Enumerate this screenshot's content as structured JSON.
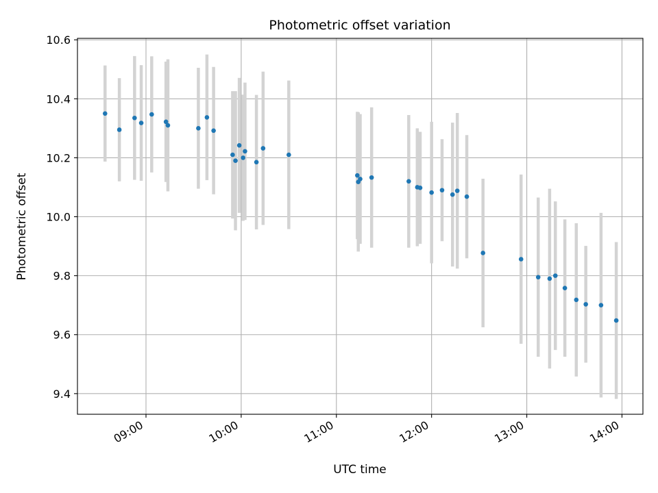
{
  "chart_data": {
    "type": "scatter",
    "title": "Photometric offset variation",
    "xlabel": "UTC time",
    "ylabel": "Photometric offset",
    "x_unit": "UTC hour",
    "xlim": [
      8.28,
      14.22
    ],
    "ylim": [
      9.33,
      10.605
    ],
    "xticks": [
      9,
      10,
      11,
      12,
      13,
      14
    ],
    "xtick_labels": [
      "09:00",
      "10:00",
      "11:00",
      "12:00",
      "13:00",
      "14:00"
    ],
    "yticks": [
      9.4,
      9.6,
      9.8,
      10.0,
      10.2,
      10.4,
      10.6
    ],
    "ytick_labels": [
      "9.4",
      "9.6",
      "9.8",
      "10.0",
      "10.2",
      "10.4",
      "10.6"
    ],
    "grid": true,
    "legend": "none",
    "point_color": "#1f77b4",
    "errorbar_color": "#d3d3d3",
    "points": [
      {
        "x": 8.57,
        "y": 10.35,
        "err": 0.163
      },
      {
        "x": 8.72,
        "y": 10.295,
        "err": 0.175
      },
      {
        "x": 8.88,
        "y": 10.335,
        "err": 0.21
      },
      {
        "x": 8.95,
        "y": 10.318,
        "err": 0.196
      },
      {
        "x": 9.06,
        "y": 10.347,
        "err": 0.197
      },
      {
        "x": 9.21,
        "y": 10.322,
        "err": 0.204
      },
      {
        "x": 9.23,
        "y": 10.31,
        "err": 0.224
      },
      {
        "x": 9.55,
        "y": 10.3,
        "err": 0.205
      },
      {
        "x": 9.64,
        "y": 10.337,
        "err": 0.213
      },
      {
        "x": 9.71,
        "y": 10.292,
        "err": 0.216
      },
      {
        "x": 9.91,
        "y": 10.21,
        "err": 0.216
      },
      {
        "x": 9.94,
        "y": 10.19,
        "err": 0.236
      },
      {
        "x": 9.98,
        "y": 10.242,
        "err": 0.229
      },
      {
        "x": 10.02,
        "y": 10.2,
        "err": 0.214
      },
      {
        "x": 10.04,
        "y": 10.222,
        "err": 0.233
      },
      {
        "x": 10.16,
        "y": 10.185,
        "err": 0.228
      },
      {
        "x": 10.23,
        "y": 10.232,
        "err": 0.26
      },
      {
        "x": 10.5,
        "y": 10.21,
        "err": 0.252
      },
      {
        "x": 11.22,
        "y": 10.14,
        "err": 0.216
      },
      {
        "x": 11.23,
        "y": 10.118,
        "err": 0.236
      },
      {
        "x": 11.25,
        "y": 10.128,
        "err": 0.22
      },
      {
        "x": 11.37,
        "y": 10.133,
        "err": 0.238
      },
      {
        "x": 11.76,
        "y": 10.12,
        "err": 0.225
      },
      {
        "x": 11.85,
        "y": 10.1,
        "err": 0.2
      },
      {
        "x": 11.88,
        "y": 10.098,
        "err": 0.19
      },
      {
        "x": 12.0,
        "y": 10.082,
        "err": 0.24
      },
      {
        "x": 12.11,
        "y": 10.09,
        "err": 0.173
      },
      {
        "x": 12.22,
        "y": 10.075,
        "err": 0.244
      },
      {
        "x": 12.27,
        "y": 10.088,
        "err": 0.264
      },
      {
        "x": 12.37,
        "y": 10.068,
        "err": 0.209
      },
      {
        "x": 12.54,
        "y": 9.877,
        "err": 0.252
      },
      {
        "x": 12.94,
        "y": 9.856,
        "err": 0.287
      },
      {
        "x": 13.12,
        "y": 9.795,
        "err": 0.27
      },
      {
        "x": 13.24,
        "y": 9.79,
        "err": 0.305
      },
      {
        "x": 13.3,
        "y": 9.8,
        "err": 0.252
      },
      {
        "x": 13.4,
        "y": 9.758,
        "err": 0.233
      },
      {
        "x": 13.52,
        "y": 9.718,
        "err": 0.26
      },
      {
        "x": 13.62,
        "y": 9.703,
        "err": 0.198
      },
      {
        "x": 13.78,
        "y": 9.7,
        "err": 0.313
      },
      {
        "x": 13.94,
        "y": 9.648,
        "err": 0.266
      }
    ]
  }
}
